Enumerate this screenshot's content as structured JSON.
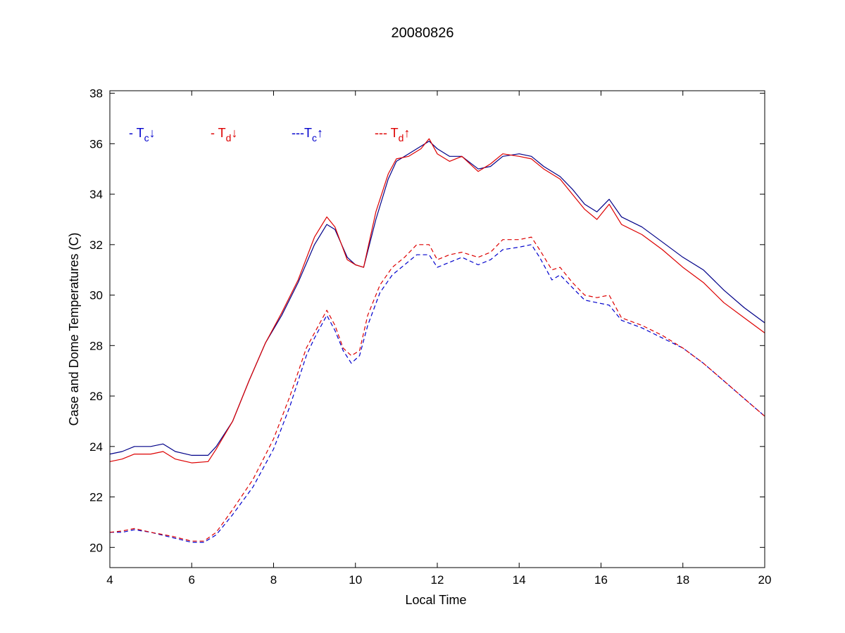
{
  "chart_data": {
    "type": "line",
    "title": "20080826",
    "xlabel": "Local Time",
    "ylabel": "Case and Dome Temperatures (C)",
    "xlim": [
      4,
      20
    ],
    "ylim": [
      19.2,
      38.1
    ],
    "x_ticks": [
      "4",
      "6",
      "8",
      "10",
      "12",
      "14",
      "16",
      "18",
      "20"
    ],
    "y_ticks": [
      "20",
      "22",
      "24",
      "26",
      "28",
      "30",
      "32",
      "34",
      "36",
      "38"
    ],
    "grid": false,
    "legend": {
      "placement": "top-left",
      "entries": [
        {
          "prefix": "- T",
          "sub": "c",
          "arrow": "↓",
          "color": "#0000cc"
        },
        {
          "prefix": "- T",
          "sub": "d",
          "arrow": "↓",
          "color": "#dd0000"
        },
        {
          "prefix": "---T",
          "sub": "c",
          "arrow": "↑",
          "color": "#0000cc"
        },
        {
          "prefix": "--- T",
          "sub": "d",
          "arrow": "↑",
          "color": "#dd0000"
        }
      ]
    },
    "series": [
      {
        "color": "#000088",
        "dashed": false,
        "points": [
          [
            4.0,
            23.7
          ],
          [
            4.3,
            23.8
          ],
          [
            4.6,
            24.0
          ],
          [
            5.0,
            24.0
          ],
          [
            5.3,
            24.1
          ],
          [
            5.6,
            23.8
          ],
          [
            6.0,
            23.65
          ],
          [
            6.4,
            23.65
          ],
          [
            6.6,
            24.0
          ],
          [
            7.0,
            25.0
          ],
          [
            7.4,
            26.6
          ],
          [
            7.8,
            28.1
          ],
          [
            8.2,
            29.2
          ],
          [
            8.6,
            30.5
          ],
          [
            9.0,
            32.0
          ],
          [
            9.3,
            32.8
          ],
          [
            9.5,
            32.6
          ],
          [
            9.8,
            31.5
          ],
          [
            10.0,
            31.2
          ],
          [
            10.2,
            31.1
          ],
          [
            10.5,
            33.0
          ],
          [
            10.8,
            34.6
          ],
          [
            11.0,
            35.3
          ],
          [
            11.3,
            35.6
          ],
          [
            11.6,
            35.9
          ],
          [
            11.8,
            36.1
          ],
          [
            12.0,
            35.8
          ],
          [
            12.3,
            35.5
          ],
          [
            12.6,
            35.5
          ],
          [
            13.0,
            35.0
          ],
          [
            13.3,
            35.1
          ],
          [
            13.6,
            35.5
          ],
          [
            14.0,
            35.6
          ],
          [
            14.3,
            35.5
          ],
          [
            14.6,
            35.1
          ],
          [
            15.0,
            34.7
          ],
          [
            15.3,
            34.2
          ],
          [
            15.6,
            33.6
          ],
          [
            15.9,
            33.3
          ],
          [
            16.2,
            33.8
          ],
          [
            16.5,
            33.1
          ],
          [
            17.0,
            32.7
          ],
          [
            17.5,
            32.1
          ],
          [
            18.0,
            31.5
          ],
          [
            18.5,
            31.0
          ],
          [
            19.0,
            30.2
          ],
          [
            19.5,
            29.5
          ],
          [
            20.0,
            28.9
          ]
        ]
      },
      {
        "color": "#dd0000",
        "dashed": false,
        "points": [
          [
            4.0,
            23.4
          ],
          [
            4.3,
            23.5
          ],
          [
            4.6,
            23.7
          ],
          [
            5.0,
            23.7
          ],
          [
            5.3,
            23.8
          ],
          [
            5.6,
            23.5
          ],
          [
            6.0,
            23.35
          ],
          [
            6.4,
            23.4
          ],
          [
            6.6,
            23.9
          ],
          [
            7.0,
            25.0
          ],
          [
            7.4,
            26.6
          ],
          [
            7.8,
            28.1
          ],
          [
            8.2,
            29.3
          ],
          [
            8.6,
            30.6
          ],
          [
            9.0,
            32.3
          ],
          [
            9.3,
            33.1
          ],
          [
            9.5,
            32.7
          ],
          [
            9.8,
            31.4
          ],
          [
            10.0,
            31.2
          ],
          [
            10.2,
            31.1
          ],
          [
            10.5,
            33.3
          ],
          [
            10.8,
            34.8
          ],
          [
            11.0,
            35.4
          ],
          [
            11.3,
            35.5
          ],
          [
            11.6,
            35.8
          ],
          [
            11.8,
            36.2
          ],
          [
            12.0,
            35.6
          ],
          [
            12.3,
            35.3
          ],
          [
            12.6,
            35.5
          ],
          [
            13.0,
            34.9
          ],
          [
            13.3,
            35.2
          ],
          [
            13.6,
            35.6
          ],
          [
            14.0,
            35.5
          ],
          [
            14.3,
            35.4
          ],
          [
            14.6,
            35.0
          ],
          [
            15.0,
            34.6
          ],
          [
            15.3,
            34.0
          ],
          [
            15.6,
            33.4
          ],
          [
            15.9,
            33.0
          ],
          [
            16.2,
            33.6
          ],
          [
            16.5,
            32.8
          ],
          [
            17.0,
            32.4
          ],
          [
            17.5,
            31.8
          ],
          [
            18.0,
            31.1
          ],
          [
            18.5,
            30.5
          ],
          [
            19.0,
            29.7
          ],
          [
            19.5,
            29.1
          ],
          [
            20.0,
            28.5
          ]
        ]
      },
      {
        "color": "#0000cc",
        "dashed": true,
        "points": [
          [
            4.0,
            20.6
          ],
          [
            4.3,
            20.6
          ],
          [
            4.6,
            20.7
          ],
          [
            5.0,
            20.6
          ],
          [
            5.5,
            20.4
          ],
          [
            6.0,
            20.2
          ],
          [
            6.3,
            20.2
          ],
          [
            6.6,
            20.5
          ],
          [
            7.0,
            21.3
          ],
          [
            7.5,
            22.4
          ],
          [
            8.0,
            23.9
          ],
          [
            8.4,
            25.6
          ],
          [
            8.8,
            27.6
          ],
          [
            9.0,
            28.3
          ],
          [
            9.3,
            29.2
          ],
          [
            9.5,
            28.6
          ],
          [
            9.7,
            27.8
          ],
          [
            9.9,
            27.3
          ],
          [
            10.1,
            27.6
          ],
          [
            10.3,
            28.8
          ],
          [
            10.6,
            30.1
          ],
          [
            10.9,
            30.8
          ],
          [
            11.2,
            31.2
          ],
          [
            11.5,
            31.6
          ],
          [
            11.8,
            31.6
          ],
          [
            12.0,
            31.1
          ],
          [
            12.3,
            31.3
          ],
          [
            12.6,
            31.5
          ],
          [
            13.0,
            31.2
          ],
          [
            13.3,
            31.4
          ],
          [
            13.6,
            31.8
          ],
          [
            14.0,
            31.9
          ],
          [
            14.3,
            32.0
          ],
          [
            14.5,
            31.5
          ],
          [
            14.8,
            30.6
          ],
          [
            15.0,
            30.8
          ],
          [
            15.3,
            30.3
          ],
          [
            15.6,
            29.8
          ],
          [
            15.9,
            29.7
          ],
          [
            16.2,
            29.6
          ],
          [
            16.5,
            29.0
          ],
          [
            17.0,
            28.7
          ],
          [
            17.5,
            28.3
          ],
          [
            18.0,
            27.9
          ],
          [
            18.5,
            27.3
          ],
          [
            19.0,
            26.6
          ],
          [
            19.5,
            25.9
          ],
          [
            20.0,
            25.2
          ]
        ]
      },
      {
        "color": "#dd0000",
        "dashed": true,
        "points": [
          [
            4.0,
            20.6
          ],
          [
            4.3,
            20.65
          ],
          [
            4.6,
            20.75
          ],
          [
            5.0,
            20.6
          ],
          [
            5.5,
            20.45
          ],
          [
            6.0,
            20.25
          ],
          [
            6.3,
            20.25
          ],
          [
            6.6,
            20.6
          ],
          [
            7.0,
            21.5
          ],
          [
            7.5,
            22.7
          ],
          [
            8.0,
            24.3
          ],
          [
            8.4,
            26.0
          ],
          [
            8.8,
            27.9
          ],
          [
            9.0,
            28.5
          ],
          [
            9.3,
            29.4
          ],
          [
            9.5,
            28.8
          ],
          [
            9.7,
            27.9
          ],
          [
            9.9,
            27.6
          ],
          [
            10.1,
            27.8
          ],
          [
            10.3,
            29.2
          ],
          [
            10.6,
            30.4
          ],
          [
            10.9,
            31.1
          ],
          [
            11.2,
            31.5
          ],
          [
            11.5,
            32.0
          ],
          [
            11.8,
            32.0
          ],
          [
            12.0,
            31.4
          ],
          [
            12.3,
            31.6
          ],
          [
            12.6,
            31.7
          ],
          [
            13.0,
            31.5
          ],
          [
            13.3,
            31.7
          ],
          [
            13.6,
            32.2
          ],
          [
            14.0,
            32.2
          ],
          [
            14.3,
            32.3
          ],
          [
            14.5,
            31.8
          ],
          [
            14.8,
            31.0
          ],
          [
            15.0,
            31.1
          ],
          [
            15.3,
            30.5
          ],
          [
            15.6,
            30.0
          ],
          [
            15.9,
            29.9
          ],
          [
            16.2,
            30.0
          ],
          [
            16.5,
            29.1
          ],
          [
            17.0,
            28.8
          ],
          [
            17.5,
            28.4
          ],
          [
            18.0,
            27.9
          ],
          [
            18.5,
            27.3
          ],
          [
            19.0,
            26.6
          ],
          [
            19.5,
            25.9
          ],
          [
            20.0,
            25.2
          ]
        ]
      }
    ]
  }
}
